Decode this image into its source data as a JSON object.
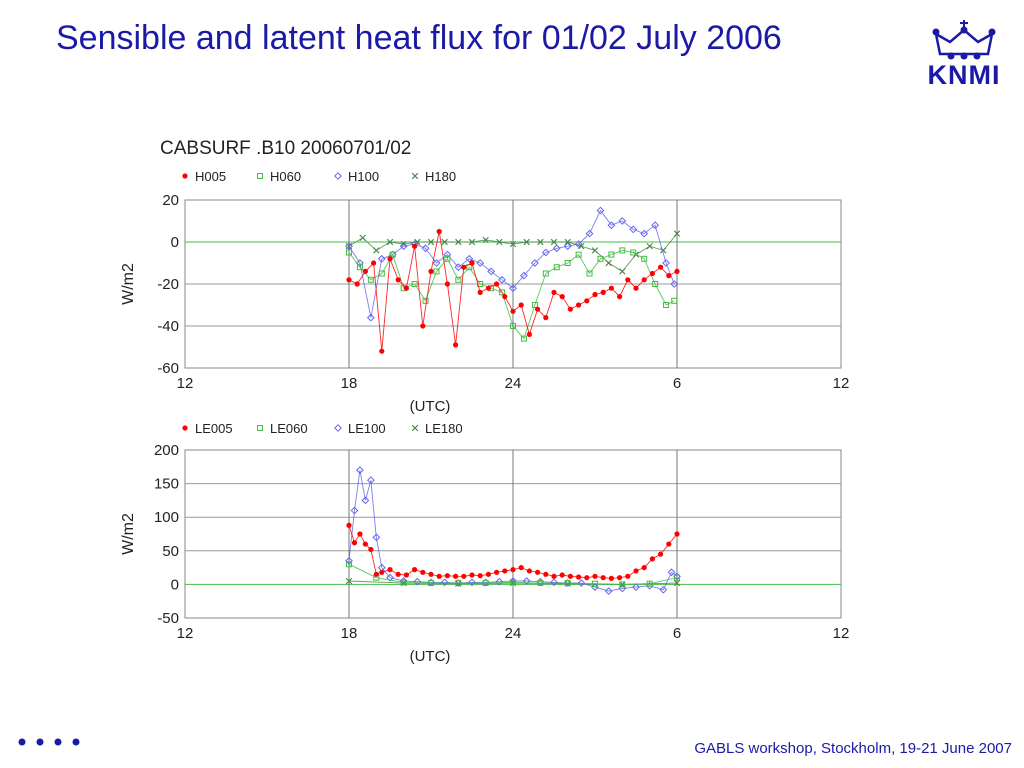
{
  "slide": {
    "title": "Sensible and latent heat flux for 01/02 July 2006",
    "logo_text": "KNMI",
    "footer": "GABLS workshop, Stockholm, 19-21 June 2007",
    "accent_color": "#1a1aa6"
  },
  "figure_title": "CABSURF .B10 20060701/02",
  "chart_data": [
    {
      "type": "line",
      "title": "",
      "xlabel": "(UTC)",
      "ylabel": "W/m2",
      "xlim": [
        12,
        36
      ],
      "ylim": [
        -60,
        20
      ],
      "xticks": [
        "12",
        "18",
        "24",
        "6",
        "12"
      ],
      "yticks": [
        "20",
        "0",
        "-20",
        "-40",
        "-60"
      ],
      "grid": true,
      "legend_placement": "top",
      "series": [
        {
          "name": "H005",
          "color": "#ff0000",
          "marker": "dot",
          "x": [
            18.0,
            18.3,
            18.6,
            18.9,
            19.2,
            19.5,
            19.8,
            20.1,
            20.4,
            20.7,
            21.0,
            21.3,
            21.6,
            21.9,
            22.2,
            22.5,
            22.8,
            23.1,
            23.4,
            23.7,
            24.0,
            24.3,
            24.6,
            24.9,
            25.2,
            25.5,
            25.8,
            26.1,
            26.4,
            26.7,
            27.0,
            27.3,
            27.6,
            27.9,
            28.2,
            28.5,
            28.8,
            29.1,
            29.4,
            29.7,
            30.0
          ],
          "y": [
            -18,
            -20,
            -14,
            -10,
            -52,
            -8,
            -18,
            -22,
            -2,
            -40,
            -14,
            5,
            -20,
            -49,
            -12,
            -10,
            -24,
            -22,
            -20,
            -26,
            -33,
            -30,
            -44,
            -32,
            -36,
            -24,
            -26,
            -32,
            -30,
            -28,
            -25,
            -24,
            -22,
            -26,
            -18,
            -22,
            -18,
            -15,
            -12,
            -16,
            -14
          ]
        },
        {
          "name": "H060",
          "color": "#44bb44",
          "marker": "square",
          "x": [
            18.0,
            18.4,
            18.8,
            19.2,
            19.6,
            20.0,
            20.4,
            20.8,
            21.2,
            21.6,
            22.0,
            22.4,
            22.8,
            23.2,
            23.6,
            24.0,
            24.4,
            24.8,
            25.2,
            25.6,
            26.0,
            26.4,
            26.8,
            27.2,
            27.6,
            28.0,
            28.4,
            28.8,
            29.2,
            29.6,
            29.9
          ],
          "y": [
            -5,
            -12,
            -18,
            -15,
            -6,
            -22,
            -20,
            -28,
            -14,
            -8,
            -18,
            -12,
            -20,
            -22,
            -24,
            -40,
            -46,
            -30,
            -15,
            -12,
            -10,
            -6,
            -15,
            -8,
            -6,
            -4,
            -5,
            -8,
            -20,
            -30,
            -28
          ]
        },
        {
          "name": "H100",
          "color": "#6666ee",
          "marker": "diamond",
          "x": [
            18.0,
            18.4,
            18.8,
            19.2,
            19.6,
            20.0,
            20.4,
            20.8,
            21.2,
            21.6,
            22.0,
            22.4,
            22.8,
            23.2,
            23.6,
            24.0,
            24.4,
            24.8,
            25.2,
            25.6,
            26.0,
            26.4,
            26.8,
            27.2,
            27.6,
            28.0,
            28.4,
            28.8,
            29.2,
            29.6,
            29.9
          ],
          "y": [
            -2,
            -10,
            -36,
            -8,
            -6,
            -2,
            -1,
            -3,
            -10,
            -6,
            -12,
            -8,
            -10,
            -14,
            -18,
            -22,
            -16,
            -10,
            -5,
            -3,
            -2,
            -1,
            4,
            15,
            8,
            10,
            6,
            4,
            8,
            -10,
            -20
          ]
        },
        {
          "name": "H180",
          "color": "#448844",
          "marker": "x",
          "x": [
            18.0,
            18.5,
            19.0,
            19.5,
            20.0,
            20.5,
            21.0,
            21.5,
            22.0,
            22.5,
            23.0,
            23.5,
            24.0,
            24.5,
            25.0,
            25.5,
            26.0,
            26.5,
            27.0,
            27.5,
            28.0,
            28.5,
            29.0,
            29.5,
            30.0
          ],
          "y": [
            -2,
            2,
            -4,
            0,
            -1,
            0,
            0,
            0,
            0,
            0,
            1,
            0,
            -1,
            0,
            0,
            0,
            0,
            -2,
            -4,
            -10,
            -14,
            -6,
            -2,
            -4,
            4
          ]
        }
      ]
    },
    {
      "type": "line",
      "title": "",
      "xlabel": "(UTC)",
      "ylabel": "W/m2",
      "xlim": [
        12,
        36
      ],
      "ylim": [
        -50,
        200
      ],
      "xticks": [
        "12",
        "18",
        "24",
        "6",
        "12"
      ],
      "yticks": [
        "200",
        "150",
        "100",
        "50",
        "0",
        "-50"
      ],
      "grid": true,
      "legend_placement": "top",
      "series": [
        {
          "name": "LE005",
          "color": "#ff0000",
          "marker": "dot",
          "x": [
            18.0,
            18.2,
            18.4,
            18.6,
            18.8,
            19.0,
            19.2,
            19.5,
            19.8,
            20.1,
            20.4,
            20.7,
            21.0,
            21.3,
            21.6,
            21.9,
            22.2,
            22.5,
            22.8,
            23.1,
            23.4,
            23.7,
            24.0,
            24.3,
            24.6,
            24.9,
            25.2,
            25.5,
            25.8,
            26.1,
            26.4,
            26.7,
            27.0,
            27.3,
            27.6,
            27.9,
            28.2,
            28.5,
            28.8,
            29.1,
            29.4,
            29.7,
            30.0
          ],
          "y": [
            88,
            62,
            75,
            60,
            52,
            15,
            18,
            22,
            15,
            14,
            22,
            18,
            15,
            12,
            13,
            12,
            12,
            14,
            13,
            15,
            18,
            20,
            22,
            25,
            20,
            18,
            15,
            12,
            14,
            12,
            11,
            10,
            12,
            10,
            9,
            10,
            12,
            20,
            25,
            38,
            45,
            60,
            75
          ]
        },
        {
          "name": "LE060",
          "color": "#44bb44",
          "marker": "square",
          "x": [
            18.0,
            19.0,
            20.0,
            21.0,
            22.0,
            23.0,
            24.0,
            25.0,
            26.0,
            27.0,
            28.0,
            29.0,
            30.0
          ],
          "y": [
            30,
            10,
            3,
            2,
            2,
            2,
            3,
            2,
            2,
            1,
            0,
            1,
            10
          ]
        },
        {
          "name": "LE100",
          "color": "#6666ee",
          "marker": "diamond",
          "x": [
            18.0,
            18.2,
            18.4,
            18.6,
            18.8,
            19.0,
            19.2,
            19.5,
            20.0,
            20.5,
            21.0,
            21.5,
            22.0,
            22.5,
            23.0,
            23.5,
            24.0,
            24.5,
            25.0,
            25.5,
            26.0,
            26.5,
            27.0,
            27.5,
            28.0,
            28.5,
            29.0,
            29.5,
            29.8,
            30.0
          ],
          "y": [
            35,
            110,
            170,
            125,
            155,
            70,
            25,
            10,
            5,
            4,
            3,
            3,
            2,
            3,
            3,
            4,
            5,
            5,
            4,
            3,
            2,
            2,
            -4,
            -10,
            -6,
            -4,
            -2,
            -8,
            18,
            12
          ]
        },
        {
          "name": "LE180",
          "color": "#448844",
          "marker": "x",
          "x": [
            18.0,
            20.0,
            22.0,
            24.0,
            26.0,
            28.0,
            30.0
          ],
          "y": [
            5,
            2,
            1,
            2,
            1,
            0,
            2
          ]
        }
      ]
    }
  ]
}
